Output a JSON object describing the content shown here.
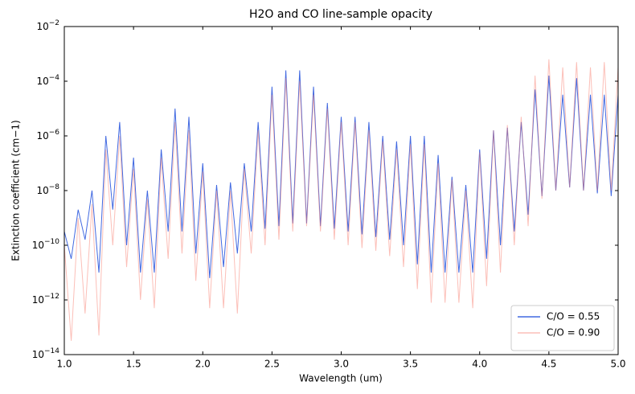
{
  "chart_data": {
    "type": "line",
    "title": "H2O and CO line-sample opacity",
    "xlabel": "Wavelength (um)",
    "ylabel": "Extinction coefficient (cm−1)",
    "yscale": "log",
    "legend": "lower right",
    "xlim": [
      1,
      5
    ],
    "ylim": [
      1e-14,
      0.01
    ],
    "xticks": [
      {
        "value": 1,
        "label": "1.0"
      },
      {
        "value": 1.5,
        "label": "1.5"
      },
      {
        "value": 2,
        "label": "2.0"
      },
      {
        "value": 2.5,
        "label": "2.5"
      },
      {
        "value": 3,
        "label": "3.0"
      },
      {
        "value": 3.5,
        "label": "3.5"
      },
      {
        "value": 4,
        "label": "4.0"
      },
      {
        "value": 4.5,
        "label": "4.5"
      },
      {
        "value": 5,
        "label": "5.0"
      }
    ],
    "yticks": [
      {
        "value": 1e-14,
        "label": "10−14"
      },
      {
        "value": 1e-12,
        "label": "10−12"
      },
      {
        "value": 1e-10,
        "label": "10−10"
      },
      {
        "value": 1e-08,
        "label": "10−8"
      },
      {
        "value": 1e-06,
        "label": "10−6"
      },
      {
        "value": 0.0001,
        "label": "10−4"
      },
      {
        "value": 0.01,
        "label": "10−2"
      }
    ],
    "x": [
      1.0,
      1.05,
      1.1,
      1.15,
      1.2,
      1.25,
      1.3,
      1.35,
      1.4,
      1.45,
      1.5,
      1.55,
      1.6,
      1.65,
      1.7,
      1.75,
      1.8,
      1.85,
      1.9,
      1.95,
      2.0,
      2.05,
      2.1,
      2.15,
      2.2,
      2.25,
      2.3,
      2.35,
      2.4,
      2.45,
      2.5,
      2.55,
      2.6,
      2.65,
      2.7,
      2.75,
      2.8,
      2.85,
      2.9,
      2.95,
      3.0,
      3.05,
      3.1,
      3.15,
      3.2,
      3.25,
      3.3,
      3.35,
      3.4,
      3.45,
      3.5,
      3.55,
      3.6,
      3.65,
      3.7,
      3.75,
      3.8,
      3.85,
      3.9,
      3.95,
      4.0,
      4.05,
      4.1,
      4.15,
      4.2,
      4.25,
      4.3,
      4.35,
      4.4,
      4.45,
      4.5,
      4.55,
      4.6,
      4.65,
      4.7,
      4.75,
      4.8,
      4.85,
      4.9,
      4.95,
      5.0
    ],
    "series": [
      {
        "name": "C/O = 0.55",
        "color": "#4169e1",
        "opacity": 1,
        "values": [
          3.2e-10,
          3.2e-11,
          2e-09,
          1.6e-10,
          1e-08,
          1e-11,
          1e-06,
          2e-09,
          3.2e-06,
          1e-10,
          1.6e-07,
          1e-11,
          1e-08,
          1e-11,
          3.2e-07,
          3.2e-10,
          1e-05,
          3.2e-10,
          5e-06,
          5e-11,
          1e-07,
          6.3e-12,
          1.6e-08,
          1.6e-11,
          2e-08,
          5e-11,
          1e-07,
          3.2e-10,
          3.2e-06,
          4e-10,
          6.3e-05,
          5e-10,
          0.00025,
          6.3e-10,
          0.00025,
          6.3e-10,
          6.3e-05,
          5e-10,
          1.6e-05,
          4e-10,
          5e-06,
          3.2e-10,
          5e-06,
          2.5e-10,
          3.2e-06,
          2e-10,
          1e-06,
          1.6e-10,
          6.3e-07,
          1e-10,
          1e-06,
          2e-11,
          1e-06,
          1e-11,
          2e-07,
          1e-11,
          3.2e-08,
          1e-11,
          1.6e-08,
          1e-11,
          3.2e-07,
          3.2e-11,
          1.6e-06,
          1e-10,
          2e-06,
          3.2e-10,
          3.2e-06,
          1.3e-09,
          5e-05,
          6.3e-09,
          0.00016,
          1e-08,
          3.2e-05,
          1.3e-08,
          0.00013,
          1e-08,
          3.2e-05,
          7.9e-09,
          3.2e-05,
          6.3e-09,
          3.2e-05
        ]
      },
      {
        "name": "C/O = 0.90",
        "color": "#fa8072",
        "opacity": 0.5,
        "values": [
          1e-10,
          3.2e-14,
          1e-09,
          3.2e-13,
          3.2e-09,
          5e-14,
          3.2e-07,
          1e-10,
          1e-06,
          1.6e-11,
          6.3e-08,
          1e-12,
          5e-09,
          5e-13,
          1.6e-07,
          3.2e-11,
          3.2e-06,
          5e-11,
          1.6e-06,
          5e-12,
          5e-08,
          5e-13,
          1e-08,
          5e-13,
          1e-08,
          3.2e-13,
          6.3e-08,
          5e-11,
          1.6e-06,
          1e-10,
          3.2e-05,
          1.6e-10,
          0.00013,
          3.2e-10,
          0.0001,
          5e-10,
          3.2e-05,
          3.2e-10,
          1e-05,
          1.6e-10,
          3.2e-06,
          1e-10,
          3.2e-06,
          7.9e-11,
          1.6e-06,
          6.3e-11,
          6.3e-07,
          4e-11,
          3.2e-07,
          1.6e-11,
          5e-07,
          2.5e-12,
          5e-07,
          7.9e-13,
          1e-07,
          7.9e-13,
          2.5e-08,
          7.9e-13,
          1e-08,
          5e-13,
          2.5e-07,
          3.2e-12,
          1.6e-06,
          1e-11,
          2.5e-06,
          1e-10,
          5e-06,
          5e-10,
          0.00016,
          5e-09,
          0.00063,
          1e-08,
          0.00032,
          1.3e-08,
          0.0005,
          1e-08,
          0.00032,
          1e-08,
          0.0005,
          1e-08,
          0.00032
        ]
      }
    ]
  }
}
